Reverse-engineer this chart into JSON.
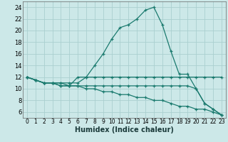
{
  "xlabel": "Humidex (Indice chaleur)",
  "xlim": [
    -0.5,
    23.5
  ],
  "ylim": [
    5,
    25
  ],
  "xticks": [
    0,
    1,
    2,
    3,
    4,
    5,
    6,
    7,
    8,
    9,
    10,
    11,
    12,
    13,
    14,
    15,
    16,
    17,
    18,
    19,
    20,
    21,
    22,
    23
  ],
  "yticks": [
    6,
    8,
    10,
    12,
    14,
    16,
    18,
    20,
    22,
    24
  ],
  "bg_color": "#cce8e8",
  "grid_color": "#aacfcf",
  "line_color": "#1a7a6e",
  "lines": [
    {
      "x": [
        0,
        1,
        2,
        3,
        4,
        5,
        6,
        7,
        8,
        9,
        10,
        11,
        12,
        13,
        14,
        15,
        16,
        17,
        18,
        19,
        20,
        21,
        22,
        23
      ],
      "y": [
        12,
        11.5,
        11,
        11,
        11,
        10.5,
        12,
        12,
        14,
        16,
        18.5,
        20.5,
        21,
        22,
        23.5,
        24,
        21,
        16.5,
        12.5,
        12.5,
        10,
        7.5,
        6.5,
        5.5
      ]
    },
    {
      "x": [
        0,
        1,
        2,
        3,
        4,
        5,
        6,
        7,
        8,
        9,
        10,
        11,
        12,
        13,
        14,
        15,
        16,
        17,
        18,
        19,
        20,
        21,
        22,
        23
      ],
      "y": [
        12,
        11.5,
        11,
        11,
        11,
        11,
        11,
        12,
        12,
        12,
        12,
        12,
        12,
        12,
        12,
        12,
        12,
        12,
        12,
        12,
        12,
        12,
        12,
        12
      ]
    },
    {
      "x": [
        0,
        1,
        2,
        3,
        4,
        5,
        6,
        7,
        8,
        9,
        10,
        11,
        12,
        13,
        14,
        15,
        16,
        17,
        18,
        19,
        20,
        21,
        22,
        23
      ],
      "y": [
        12,
        11.5,
        11,
        11,
        10.5,
        10.5,
        10.5,
        10.5,
        10.5,
        10.5,
        10.5,
        10.5,
        10.5,
        10.5,
        10.5,
        10.5,
        10.5,
        10.5,
        10.5,
        10.5,
        10,
        7.5,
        6.5,
        5.5
      ]
    },
    {
      "x": [
        0,
        1,
        2,
        3,
        4,
        5,
        6,
        7,
        8,
        9,
        10,
        11,
        12,
        13,
        14,
        15,
        16,
        17,
        18,
        19,
        20,
        21,
        22,
        23
      ],
      "y": [
        12,
        11.5,
        11,
        11,
        10.5,
        10.5,
        10.5,
        10,
        10,
        9.5,
        9.5,
        9,
        9,
        8.5,
        8.5,
        8,
        8,
        7.5,
        7,
        7,
        6.5,
        6.5,
        6,
        5.5
      ]
    }
  ]
}
